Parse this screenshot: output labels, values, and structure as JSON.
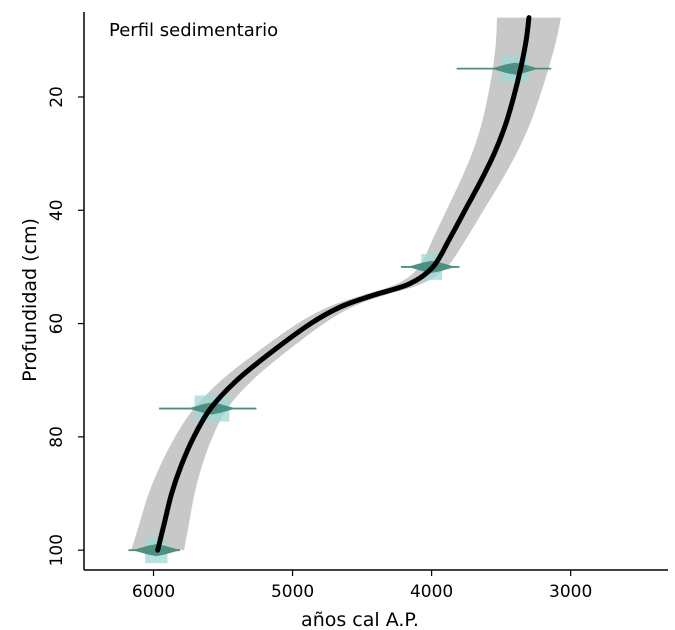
{
  "chart_data": {
    "type": "line",
    "title": "",
    "annotation": "Perfil sedimentario",
    "xlabel": "años cal A.P.",
    "ylabel": "Profundidad (cm)",
    "xlim": [
      6500,
      2300
    ],
    "ylim": [
      103.5,
      5
    ],
    "x_reversed": true,
    "y_reversed": true,
    "x_ticks": [
      6000,
      5000,
      4000,
      3000
    ],
    "y_ticks": [
      20,
      40,
      60,
      80,
      100
    ],
    "x_tick_labels": [
      "6000",
      "5000",
      "4000",
      "3000"
    ],
    "y_tick_labels": [
      "20",
      "40",
      "60",
      "80",
      "100"
    ],
    "grid": false,
    "legend": "none",
    "series": [
      {
        "kind": "age-depth-model",
        "points": [
          {
            "depth": 6,
            "age": 3300
          },
          {
            "depth": 10,
            "age": 3320
          },
          {
            "depth": 15,
            "age": 3360
          },
          {
            "depth": 20,
            "age": 3410
          },
          {
            "depth": 25,
            "age": 3470
          },
          {
            "depth": 30,
            "age": 3550
          },
          {
            "depth": 35,
            "age": 3650
          },
          {
            "depth": 40,
            "age": 3760
          },
          {
            "depth": 45,
            "age": 3870
          },
          {
            "depth": 50,
            "age": 3990
          },
          {
            "depth": 53,
            "age": 4160
          },
          {
            "depth": 55,
            "age": 4420
          },
          {
            "depth": 57,
            "age": 4650
          },
          {
            "depth": 60,
            "age": 4870
          },
          {
            "depth": 65,
            "age": 5150
          },
          {
            "depth": 70,
            "age": 5400
          },
          {
            "depth": 75,
            "age": 5590
          },
          {
            "depth": 80,
            "age": 5710
          },
          {
            "depth": 85,
            "age": 5800
          },
          {
            "depth": 90,
            "age": 5870
          },
          {
            "depth": 95,
            "age": 5920
          },
          {
            "depth": 100,
            "age": 5970
          }
        ],
        "band_halfwidth": [
          {
            "depth": 6,
            "value": 230
          },
          {
            "depth": 15,
            "value": 200
          },
          {
            "depth": 30,
            "value": 160
          },
          {
            "depth": 45,
            "value": 120
          },
          {
            "depth": 50,
            "value": 100
          },
          {
            "depth": 55,
            "value": 80
          },
          {
            "depth": 60,
            "value": 95
          },
          {
            "depth": 75,
            "value": 120
          },
          {
            "depth": 90,
            "value": 165
          },
          {
            "depth": 100,
            "value": 190
          }
        ]
      }
    ],
    "dates": [
      {
        "depth": 15,
        "age": 3400,
        "age_range": [
          3140,
          3820
        ],
        "box_width": 200
      },
      {
        "depth": 50,
        "age": 4000,
        "age_range": [
          3800,
          4220
        ],
        "box_width": 150
      },
      {
        "depth": 75,
        "age": 5580,
        "age_range": [
          5260,
          5960
        ],
        "box_width": 250
      },
      {
        "depth": 100,
        "age": 5980,
        "age_range": [
          5810,
          6180
        ],
        "box_width": 160
      }
    ],
    "colors": {
      "line": "#000000",
      "band": "#c8c8c8",
      "date_box": "#9fd8d8",
      "date_mark": "#4d8f80"
    }
  }
}
